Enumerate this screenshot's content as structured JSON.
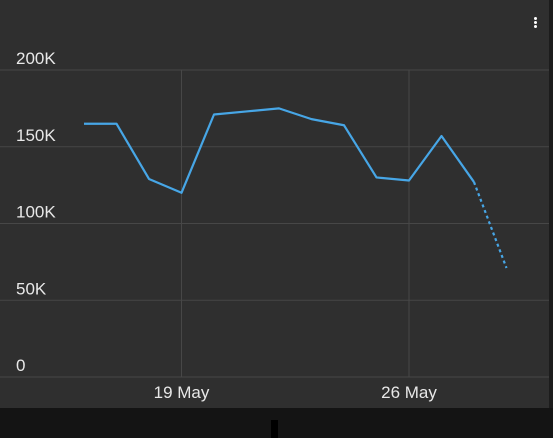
{
  "chart_data": {
    "type": "line",
    "x": [
      "16 May",
      "17 May",
      "18 May",
      "19 May",
      "20 May",
      "21 May",
      "22 May",
      "23 May",
      "24 May",
      "25 May",
      "26 May",
      "27 May",
      "28 May",
      "29 May"
    ],
    "series": [
      {
        "values": [
          165000,
          165000,
          129000,
          120000,
          171000,
          173000,
          175000,
          168000,
          164000,
          130000,
          128000,
          157000,
          127000,
          71000
        ],
        "projected_from_index": 12,
        "color": "#47a6e6"
      }
    ],
    "ylim": [
      0,
      200000
    ],
    "yticks": [
      0,
      50000,
      100000,
      150000,
      200000
    ],
    "ytick_labels": [
      "0",
      "50K",
      "100K",
      "150K",
      "200K"
    ],
    "xtick_labels": [
      {
        "x": "19 May",
        "label": "19 May"
      },
      {
        "x": "26 May",
        "label": "26 May"
      }
    ],
    "grid": true
  },
  "icons": {
    "menu": "more-vertical-icon"
  }
}
